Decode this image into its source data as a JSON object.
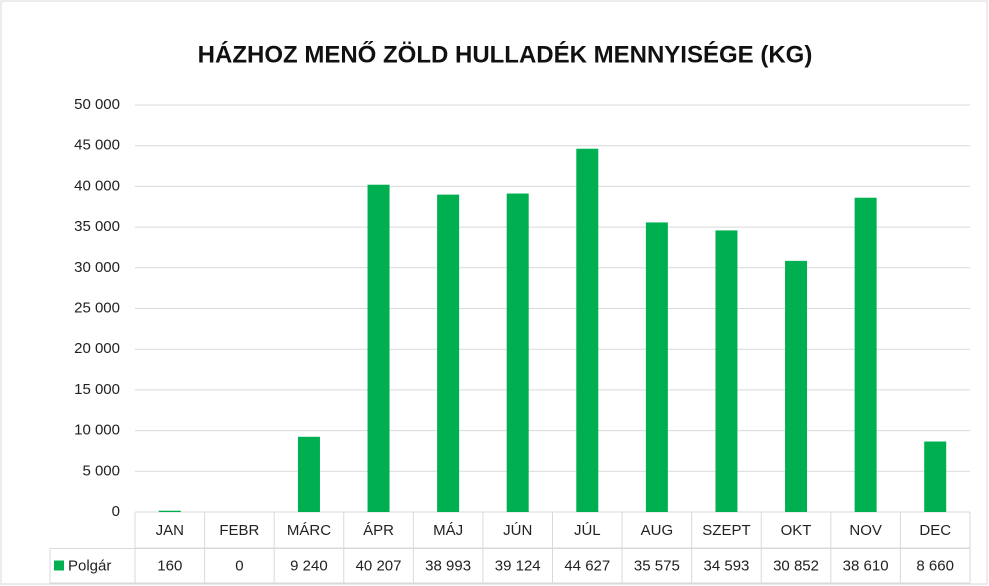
{
  "chart_data": {
    "type": "bar",
    "title": "HÁZHOZ MENŐ ZÖLD HULLADÉK MENNYISÉGE (KG)",
    "categories": [
      "JAN",
      "FEBR",
      "MÁRC",
      "ÁPR",
      "MÁJ",
      "JÚN",
      "JÚL",
      "AUG",
      "SZEPT",
      "OKT",
      "NOV",
      "DEC"
    ],
    "series": [
      {
        "name": "Polgár",
        "color": "#00b050",
        "values": [
          160,
          0,
          9240,
          40207,
          38993,
          39124,
          44627,
          35575,
          34593,
          30852,
          38610,
          8660
        ],
        "value_labels": [
          "160",
          "0",
          "9 240",
          "40 207",
          "38 993",
          "39 124",
          "44 627",
          "35 575",
          "34 593",
          "30 852",
          "38 610",
          "8 660"
        ]
      }
    ],
    "ylim": [
      0,
      50000
    ],
    "yticks": [
      0,
      {
        "value": 5000,
        "label": "5 000"
      },
      {
        "value": 10000,
        "label": "10 000"
      },
      {
        "value": 15000,
        "label": "15 000"
      },
      {
        "value": 20000,
        "label": "20 000"
      },
      {
        "value": 25000,
        "label": "25 000"
      },
      {
        "value": 30000,
        "label": "30 000"
      },
      {
        "value": 35000,
        "label": "35 000"
      },
      {
        "value": 40000,
        "label": "40 000"
      },
      {
        "value": 45000,
        "label": "45 000"
      },
      {
        "value": 50000,
        "label": "50 000"
      }
    ],
    "grid": true
  }
}
